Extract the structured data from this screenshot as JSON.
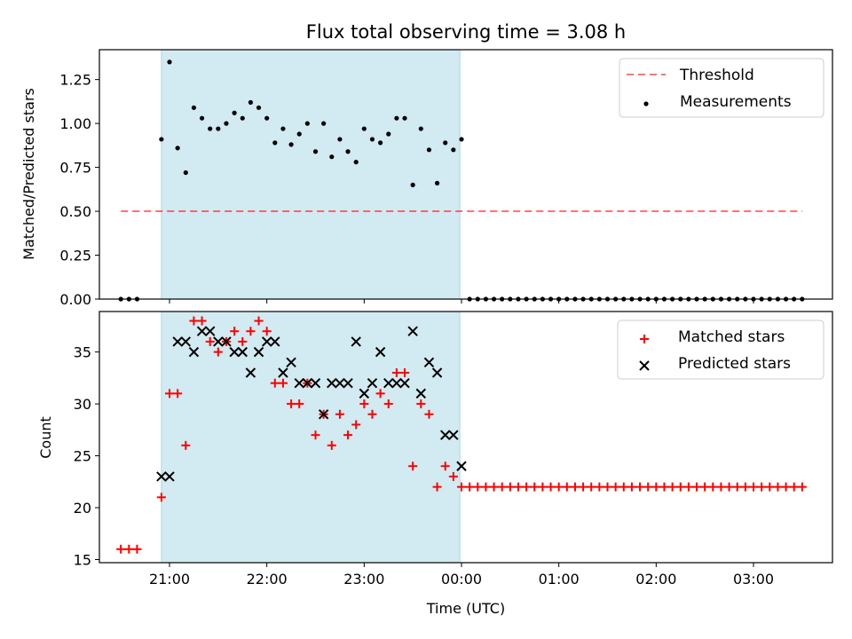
{
  "title": "Flux total observing time = 3.08 h",
  "colors": {
    "shade": "#add8e6",
    "threshold": "#ff0000",
    "measurement": "#000000",
    "matched": "#ff0000",
    "predicted": "#000000"
  },
  "chart_data": [
    {
      "type": "scatter",
      "title": "Flux total observing time = 3.08 h",
      "xlabel": "",
      "ylabel": "Matched/Predicted stars",
      "ylim": [
        0,
        1.42
      ],
      "yticks": [
        "0.00",
        "0.25",
        "0.50",
        "0.75",
        "1.00",
        "1.25"
      ],
      "grid": false,
      "legend": {
        "position": "top-right",
        "entries": [
          "Threshold",
          "Measurements"
        ]
      },
      "shaded_interval": [
        "20:55",
        "23:59"
      ],
      "threshold": {
        "name": "Threshold",
        "y": 0.5,
        "x_range": [
          "20:30",
          "03:30"
        ]
      },
      "series": [
        {
          "name": "Measurements",
          "x": [
            "20:30",
            "20:35",
            "20:40",
            "20:55",
            "21:00",
            "21:05",
            "21:10",
            "21:15",
            "21:20",
            "21:25",
            "21:30",
            "21:35",
            "21:40",
            "21:45",
            "21:50",
            "21:55",
            "22:00",
            "22:05",
            "22:10",
            "22:15",
            "22:20",
            "22:25",
            "22:30",
            "22:35",
            "22:40",
            "22:45",
            "22:50",
            "22:55",
            "23:00",
            "23:05",
            "23:10",
            "23:15",
            "23:20",
            "23:25",
            "23:30",
            "23:35",
            "23:40",
            "23:45",
            "23:50",
            "23:55",
            "00:00",
            "00:05",
            "00:10",
            "00:15",
            "00:20",
            "00:25",
            "00:30",
            "00:35",
            "00:40",
            "00:45",
            "00:50",
            "00:55",
            "01:00",
            "01:05",
            "01:10",
            "01:15",
            "01:20",
            "01:25",
            "01:30",
            "01:35",
            "01:40",
            "01:45",
            "01:50",
            "01:55",
            "02:00",
            "02:05",
            "02:10",
            "02:15",
            "02:20",
            "02:25",
            "02:30",
            "02:35",
            "02:40",
            "02:45",
            "02:50",
            "02:55",
            "03:00",
            "03:05",
            "03:10",
            "03:15",
            "03:20",
            "03:25",
            "03:30"
          ],
          "y": [
            0,
            0,
            0,
            0.91,
            1.35,
            0.86,
            0.72,
            1.09,
            1.03,
            0.97,
            0.97,
            1.0,
            1.06,
            1.03,
            1.12,
            1.09,
            1.03,
            0.89,
            0.97,
            0.88,
            0.94,
            1.0,
            0.84,
            1.0,
            0.81,
            0.91,
            0.84,
            0.78,
            0.97,
            0.91,
            0.89,
            0.94,
            1.03,
            1.03,
            0.65,
            0.97,
            0.85,
            0.66,
            0.89,
            0.85,
            0.91,
            0,
            0,
            0,
            0,
            0,
            0,
            0,
            0,
            0,
            0,
            0,
            0,
            0,
            0,
            0,
            0,
            0,
            0,
            0,
            0,
            0,
            0,
            0,
            0,
            0,
            0,
            0,
            0,
            0,
            0,
            0,
            0,
            0,
            0,
            0,
            0,
            0,
            0,
            0,
            0,
            0,
            0
          ]
        }
      ]
    },
    {
      "type": "scatter",
      "xlabel": "Time (UTC)",
      "ylabel": "Count",
      "ylim": [
        14.7,
        38.9
      ],
      "yticks": [
        "15",
        "20",
        "25",
        "30",
        "35"
      ],
      "xticks": [
        "21:00",
        "22:00",
        "23:00",
        "00:00",
        "01:00",
        "02:00",
        "03:00"
      ],
      "grid": false,
      "legend": {
        "position": "top-right",
        "entries": [
          "Matched stars",
          "Predicted stars"
        ]
      },
      "shaded_interval": [
        "20:55",
        "23:59"
      ],
      "series": [
        {
          "name": "Matched stars",
          "marker": "+",
          "x": [
            "20:30",
            "20:35",
            "20:40",
            "20:55",
            "21:00",
            "21:05",
            "21:10",
            "21:15",
            "21:20",
            "21:25",
            "21:30",
            "21:35",
            "21:40",
            "21:45",
            "21:50",
            "21:55",
            "22:00",
            "22:05",
            "22:10",
            "22:15",
            "22:20",
            "22:25",
            "22:30",
            "22:35",
            "22:40",
            "22:45",
            "22:50",
            "22:55",
            "23:00",
            "23:05",
            "23:10",
            "23:15",
            "23:20",
            "23:25",
            "23:30",
            "23:35",
            "23:40",
            "23:45",
            "23:50",
            "23:55",
            "00:00",
            "00:05",
            "00:10",
            "00:15",
            "00:20",
            "00:25",
            "00:30",
            "00:35",
            "00:40",
            "00:45",
            "00:50",
            "00:55",
            "01:00",
            "01:05",
            "01:10",
            "01:15",
            "01:20",
            "01:25",
            "01:30",
            "01:35",
            "01:40",
            "01:45",
            "01:50",
            "01:55",
            "02:00",
            "02:05",
            "02:10",
            "02:15",
            "02:20",
            "02:25",
            "02:30",
            "02:35",
            "02:40",
            "02:45",
            "02:50",
            "02:55",
            "03:00",
            "03:05",
            "03:10",
            "03:15",
            "03:20",
            "03:25",
            "03:30"
          ],
          "y": [
            16,
            16,
            16,
            21,
            31,
            31,
            26,
            38,
            38,
            36,
            35,
            36,
            37,
            36,
            37,
            38,
            37,
            32,
            32,
            30,
            30,
            32,
            27,
            29,
            26,
            29,
            27,
            28,
            30,
            29,
            31,
            30,
            33,
            33,
            24,
            30,
            29,
            22,
            24,
            23,
            22,
            22,
            22,
            22,
            22,
            22,
            22,
            22,
            22,
            22,
            22,
            22,
            22,
            22,
            22,
            22,
            22,
            22,
            22,
            22,
            22,
            22,
            22,
            22,
            22,
            22,
            22,
            22,
            22,
            22,
            22,
            22,
            22,
            22,
            22,
            22,
            22,
            22,
            22,
            22,
            22,
            22,
            22
          ]
        },
        {
          "name": "Predicted stars",
          "marker": "x",
          "x": [
            "20:55",
            "21:00",
            "21:05",
            "21:10",
            "21:15",
            "21:20",
            "21:25",
            "21:30",
            "21:35",
            "21:40",
            "21:45",
            "21:50",
            "21:55",
            "22:00",
            "22:05",
            "22:10",
            "22:15",
            "22:20",
            "22:25",
            "22:30",
            "22:35",
            "22:40",
            "22:45",
            "22:50",
            "22:55",
            "23:00",
            "23:05",
            "23:10",
            "23:15",
            "23:20",
            "23:25",
            "23:30",
            "23:35",
            "23:40",
            "23:45",
            "23:50",
            "23:55",
            "00:00"
          ],
          "y": [
            23,
            23,
            36,
            36,
            35,
            37,
            37,
            36,
            36,
            35,
            35,
            33,
            35,
            36,
            36,
            33,
            34,
            32,
            32,
            32,
            29,
            32,
            32,
            32,
            36,
            31,
            32,
            35,
            32,
            32,
            32,
            37,
            31,
            34,
            33,
            27,
            27,
            24
          ]
        }
      ]
    }
  ]
}
